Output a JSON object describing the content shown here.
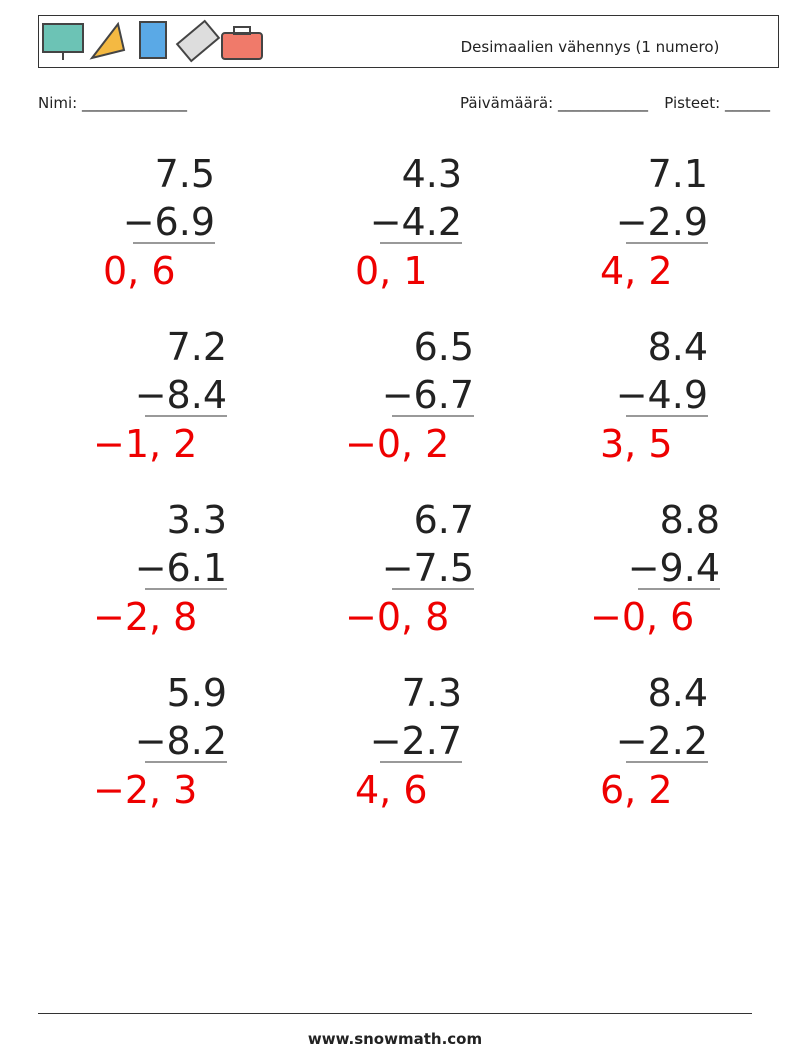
{
  "header": {
    "title": "Desimaalien vähennys (1 numero)"
  },
  "fields": {
    "name": "Nimi: ______________",
    "date": "Päivämäärä: ____________",
    "score": "Pisteet: ______"
  },
  "problems": [
    {
      "top": "7.5",
      "bottom": "−6.9",
      "answer": "0, 6"
    },
    {
      "top": "4.3",
      "bottom": "−4.2",
      "answer": "0, 1"
    },
    {
      "top": "7.1",
      "bottom": "−2.9",
      "answer": "4, 2"
    },
    {
      "top": "7.2",
      "bottom": "−8.4",
      "answer": "−1, 2"
    },
    {
      "top": "6.5",
      "bottom": "−6.7",
      "answer": "−0, 2"
    },
    {
      "top": "8.4",
      "bottom": "−4.9",
      "answer": "3, 5"
    },
    {
      "top": "3.3",
      "bottom": "−6.1",
      "answer": "−2, 8"
    },
    {
      "top": "6.7",
      "bottom": "−7.5",
      "answer": "−0, 8"
    },
    {
      "top": "8.8",
      "bottom": "−9.4",
      "answer": "−0, 6"
    },
    {
      "top": "5.9",
      "bottom": "−8.2",
      "answer": "−2, 3"
    },
    {
      "top": "7.3",
      "bottom": "−2.7",
      "answer": "4, 6"
    },
    {
      "top": "8.4",
      "bottom": "−2.2",
      "answer": "6, 2"
    }
  ],
  "footer": {
    "url": "www.snowmath.com"
  }
}
